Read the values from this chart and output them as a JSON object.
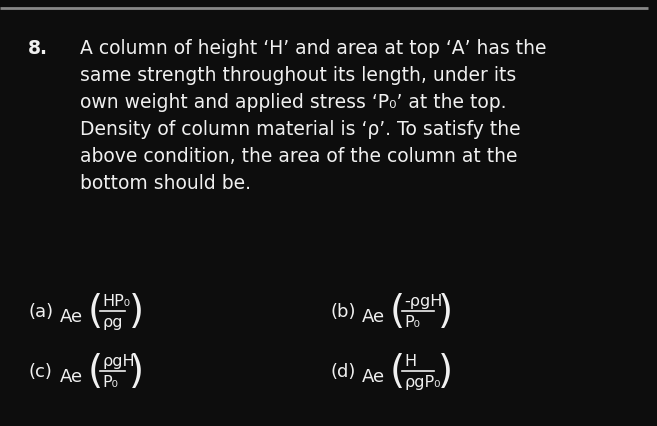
{
  "background_color": "#0d0d0d",
  "text_color": "#f0f0f0",
  "top_bar_color": "#888888",
  "question_number": "8.",
  "q_lines": [
    "A column of height ‘H’ and area at top ‘A’ has the",
    "same strength throughout its length, under its",
    "own weight and applied stress ‘P₀’ at the top.",
    "Density of column material is ‘ρ’. To satisfy the",
    "above condition, the area of the column at the",
    "bottom should be."
  ],
  "opt_a_label": "(a)",
  "opt_a_prefix": "Ae",
  "opt_a_num": "HP₀",
  "opt_a_den": "ρg",
  "opt_b_label": "(b)",
  "opt_b_prefix": "Ae",
  "opt_b_num": "-ρgH",
  "opt_b_den": "P₀",
  "opt_c_label": "(c)",
  "opt_c_prefix": "Ae",
  "opt_c_num": "ρgH",
  "opt_c_den": "P₀",
  "opt_d_label": "(d)",
  "opt_d_prefix": "Ae",
  "opt_d_num": "H",
  "opt_d_den": "ρgP₀",
  "figsize": [
    6.57,
    4.27
  ],
  "dpi": 100
}
